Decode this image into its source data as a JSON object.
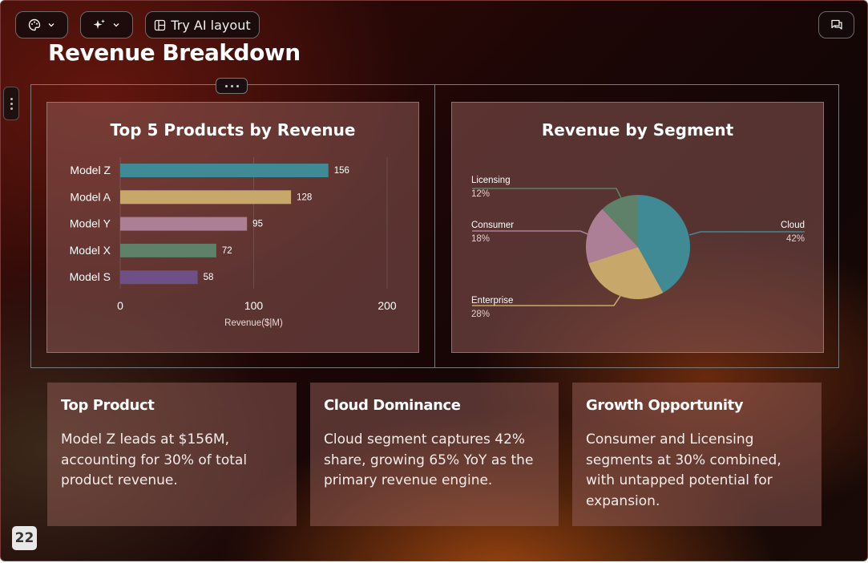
{
  "toolbar": {
    "theme_icon": "palette-icon",
    "ai_icon": "sparkle-icon",
    "try_ai_label": "Try AI layout",
    "comment_icon": "comment-icon"
  },
  "slide": {
    "title": "Revenue Breakdown",
    "page_number": "22"
  },
  "chart_data": [
    {
      "type": "bar",
      "orientation": "horizontal",
      "title": "Top 5 Products by Revenue",
      "categories": [
        "Model Z",
        "Model A",
        "Model Y",
        "Model X",
        "Model S"
      ],
      "values": [
        156,
        128,
        95,
        72,
        58
      ],
      "colors": [
        "#3f8a94",
        "#c8a86a",
        "#ad7f96",
        "#5f8069",
        "#6e4f86"
      ],
      "xlabel": "Revenue($|M)",
      "xlim": [
        0,
        200
      ],
      "xticks": [
        0,
        100,
        200
      ],
      "grid": true
    },
    {
      "type": "pie",
      "title": "Revenue by Segment",
      "slices": [
        {
          "label": "Cloud",
          "value": 42,
          "pct_label": "42%",
          "color": "#3f8a94"
        },
        {
          "label": "Enterprise",
          "value": 28,
          "pct_label": "28%",
          "color": "#c8a86a"
        },
        {
          "label": "Consumer",
          "value": 18,
          "pct_label": "18%",
          "color": "#ad7f96"
        },
        {
          "label": "Licensing",
          "value": 12,
          "pct_label": "12%",
          "color": "#5f8069"
        }
      ]
    }
  ],
  "cards": [
    {
      "title": "Top Product",
      "body": "Model Z leads at $156M, accounting for 30% of total product revenue."
    },
    {
      "title": "Cloud Dominance",
      "body": "Cloud segment captures 42% share, growing 65% YoY as the primary revenue engine."
    },
    {
      "title": "Growth Opportunity",
      "body": "Consumer and Licensing segments at 30% combined, with untapped potential for expansion."
    }
  ]
}
